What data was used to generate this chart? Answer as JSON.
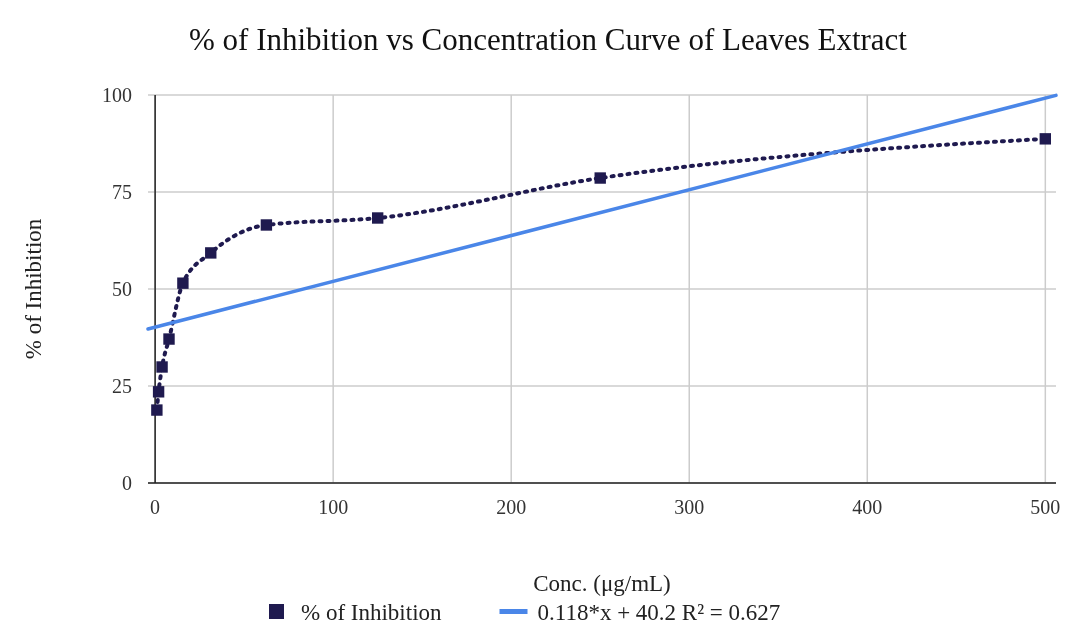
{
  "chart_data": {
    "type": "line",
    "title": "% of Inhibition vs Concentration Curve of Leaves Extract",
    "xlabel": "Conc. (μg/mL)",
    "ylabel": "% of Inhibition",
    "xlim": [
      -4,
      506
    ],
    "xticks": [
      0,
      100,
      200,
      300,
      400,
      500
    ],
    "ylim": [
      0,
      100
    ],
    "yticks": [
      0,
      25,
      50,
      75,
      100
    ],
    "grid": true,
    "legend": "bottom",
    "series": [
      {
        "name": "% of Inhibition",
        "color": "#1f1a4f",
        "marker": "square",
        "line_style": "dotted",
        "x": [
          0.98,
          1.95,
          3.9,
          7.8,
          15.6,
          31.25,
          62.5,
          125,
          250,
          500
        ],
        "values": [
          18.8,
          23.5,
          29.9,
          37.1,
          51.5,
          59.3,
          66.5,
          68.3,
          78.6,
          88.7
        ]
      },
      {
        "name": "0.118*x + 40.2 R² = 0.627",
        "color": "#4a86e8",
        "marker": "none",
        "line_style": "solid",
        "x": [
          -4,
          506
        ],
        "values": [
          39.7,
          99.9
        ]
      }
    ]
  }
}
